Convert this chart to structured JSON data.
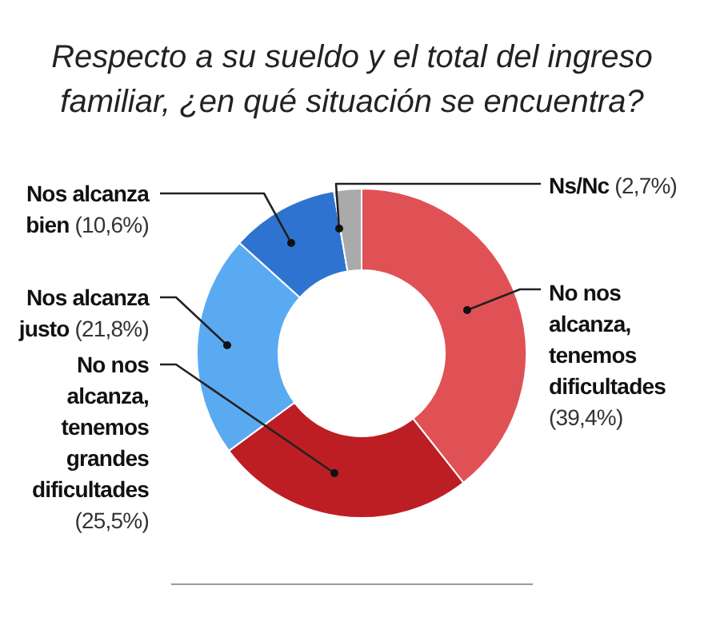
{
  "chart_data": {
    "type": "donut",
    "title": "Respecto a su sueldo y el total del ingreso familiar, ¿en qué situación se encuentra?",
    "categories": [
      "No nos alcanza, tenemos dificultades",
      "No nos alcanza, tenemos grandes dificultades",
      "Nos alcanza justo",
      "Nos alcanza bien",
      "Ns/Nc"
    ],
    "values": [
      39.4,
      25.5,
      21.8,
      10.6,
      2.7
    ],
    "value_labels": [
      "(39,4%)",
      "(25,5%)",
      "(21,8%)",
      "(10,6%)",
      "(2,7%)"
    ],
    "colors": [
      "#e05155",
      "#bd1e24",
      "#5aaaf2",
      "#2f73d0",
      "#aaaaaa"
    ]
  }
}
